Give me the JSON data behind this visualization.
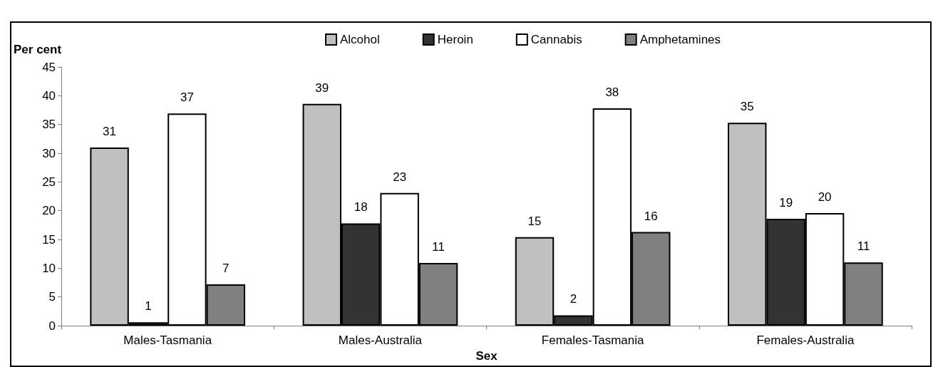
{
  "chart_data": {
    "type": "bar",
    "xlabel": "Sex",
    "ylabel": "Per cent",
    "categories": [
      "Males-Tasmania",
      "Males-Australia",
      "Females-Tasmania",
      "Females-Australia"
    ],
    "series": [
      {
        "name": "Alcohol",
        "color": "#c0c0c0",
        "values": [
          31.0,
          38.6,
          15.4,
          35.3
        ],
        "value_labels": [
          "31",
          "39",
          "15",
          "35"
        ]
      },
      {
        "name": "Heroin",
        "color": "#333333",
        "values": [
          0.6,
          17.8,
          1.8,
          18.6
        ],
        "value_labels": [
          "1",
          "18",
          "2",
          "19"
        ]
      },
      {
        "name": "Cannabis",
        "color": "#ffffff",
        "values": [
          36.9,
          23.1,
          37.8,
          19.6
        ],
        "value_labels": [
          "37",
          "23",
          "38",
          "20"
        ]
      },
      {
        "name": "Amphetamines",
        "color": "#808080",
        "values": [
          7.2,
          10.9,
          16.3,
          11.0
        ],
        "value_labels": [
          "7",
          "11",
          "16",
          "11"
        ]
      }
    ],
    "ylim": [
      0,
      45
    ],
    "yticks": [
      0,
      5,
      10,
      15,
      20,
      25,
      30,
      35,
      40,
      45
    ],
    "grid": false,
    "legend": "top"
  }
}
